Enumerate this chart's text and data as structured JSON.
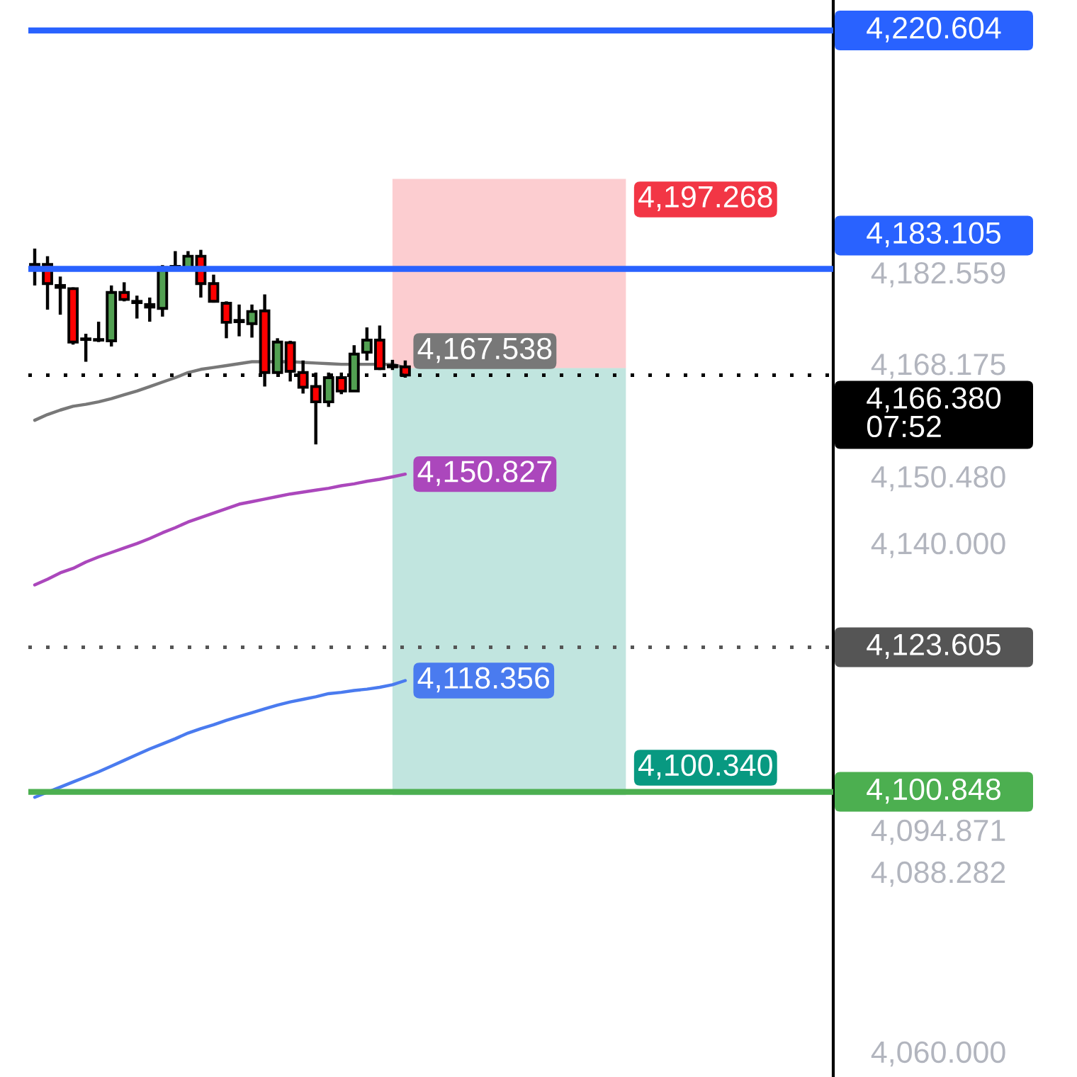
{
  "chart_data": {
    "type": "candlestick",
    "tick_labels": "y",
    "categories": [
      null,
      null,
      null,
      null,
      null,
      null,
      null,
      null,
      null,
      null,
      null,
      null,
      null,
      null,
      null,
      null,
      null,
      null,
      null,
      null,
      null,
      null,
      null,
      null,
      null,
      null,
      null,
      null,
      null,
      null,
      null,
      null,
      null,
      null,
      null,
      null,
      null,
      null,
      null,
      null,
      null,
      null,
      null,
      null,
      null,
      null,
      null,
      null,
      null,
      null,
      null,
      null,
      null,
      null,
      null,
      null,
      null,
      null,
      null,
      null,
      null,
      null,
      null
    ],
    "ohlc": [
      [
        4183.8,
        4186.3,
        4180.5,
        4183.3
      ],
      [
        4183.8,
        4185.1,
        4176.7,
        4180.8
      ],
      [
        4180.5,
        4181.9,
        4175.9,
        4180.2
      ],
      [
        4180.0,
        4180.2,
        4171.2,
        4171.6
      ],
      [
        4172.1,
        4172.9,
        4168.5,
        4172.0
      ],
      [
        4172.0,
        4174.8,
        4171.6,
        4171.9
      ],
      [
        4171.8,
        4180.5,
        4170.9,
        4179.4
      ],
      [
        4179.4,
        4181.0,
        4178.0,
        4178.3
      ],
      [
        4178.0,
        4178.9,
        4175.3,
        4177.8
      ],
      [
        4177.5,
        4178.6,
        4174.8,
        4177.1
      ],
      [
        4176.9,
        4183.7,
        4175.6,
        4183.3
      ],
      [
        4183.3,
        4185.9,
        4183.3,
        4183.5
      ],
      [
        4183.1,
        4185.9,
        4182.9,
        4185.1
      ],
      [
        4185.1,
        4186.1,
        4178.6,
        4180.8
      ],
      [
        4180.8,
        4182.2,
        4177.8,
        4178.0
      ],
      [
        4177.7,
        4178.0,
        4172.2,
        4174.7
      ],
      [
        4175.0,
        4177.5,
        4172.5,
        4174.8
      ],
      [
        4174.5,
        4177.5,
        4172.3,
        4176.4
      ],
      [
        4176.5,
        4179.1,
        4164.6,
        4166.8
      ],
      [
        4166.8,
        4172.2,
        4166.8,
        4171.6
      ],
      [
        4171.5,
        4171.8,
        4165.4,
        4167.0
      ],
      [
        4166.8,
        4168.7,
        4163.5,
        4164.5
      ],
      [
        4164.6,
        4166.8,
        4155.5,
        4162.2
      ],
      [
        4162.2,
        4166.8,
        4161.4,
        4166.0
      ],
      [
        4166.0,
        4166.8,
        4163.4,
        4163.9
      ],
      [
        4163.9,
        4171.1,
        4163.8,
        4169.7
      ],
      [
        4170.0,
        4173.9,
        4168.7,
        4171.9
      ],
      [
        4171.9,
        4174.2,
        4167.2,
        4167.4
      ],
      [
        4167.9,
        4168.8,
        4167.2,
        4167.7
      ],
      [
        4167.7,
        4168.7,
        4166.0,
        4166.4
      ],
      null,
      null,
      null,
      null,
      null,
      null,
      null,
      null,
      null,
      null,
      null,
      null,
      null,
      null,
      null,
      null,
      null,
      null,
      null,
      null,
      null,
      null,
      null,
      null,
      null,
      null,
      null,
      null,
      null,
      null,
      null,
      null,
      null
    ],
    "colors": [
      "#ff0000",
      "#ff0000",
      "#ff0000",
      "#ff0000",
      "#ff0000",
      "#ff0000",
      "#52a052",
      "#ff0000",
      "#ff0000",
      "#ff0000",
      "#52a052",
      "#52a052",
      "#52a052",
      "#ff0000",
      "#ff0000",
      "#ff0000",
      "#ff0000",
      "#52a052",
      "#ff0000",
      "#52a052",
      "#ff0000",
      "#ff0000",
      "#ff0000",
      "#52a052",
      "#ff0000",
      "#52a052",
      "#52a052",
      "#ff0000",
      "#ff0000",
      "#ff0000",
      null,
      null,
      null,
      null,
      null,
      null,
      null,
      null,
      null,
      null,
      null,
      null,
      null,
      null,
      null,
      null,
      null,
      null,
      null,
      null,
      null,
      null,
      null,
      null,
      null,
      null,
      null,
      null,
      null,
      null,
      null,
      null,
      null
    ],
    "series": [
      {
        "type": "line",
        "color": "#787878",
        "values": [
          4159.3,
          4160.2,
          4160.9,
          4161.5,
          4161.8,
          4162.2,
          4162.7,
          4163.3,
          4163.9,
          4164.6,
          4165.3,
          4166.0,
          4166.8,
          4167.3,
          4167.6,
          4167.9,
          4168.2,
          4168.5,
          4168.5,
          4168.5,
          4168.5,
          4168.4,
          4168.3,
          4168.2,
          4168.1,
          4168.1,
          4168.1,
          4168.1,
          4168.1,
          4167.538,
          null,
          null,
          null,
          null,
          null,
          null,
          null,
          null,
          null,
          null,
          null,
          null,
          null,
          null,
          null,
          null,
          null,
          null,
          null,
          null,
          null,
          null,
          null,
          null,
          null,
          null,
          null,
          null,
          null,
          null,
          null,
          null,
          null
        ],
        "value_labels": [
          null,
          null,
          null,
          null,
          null,
          null,
          null,
          null,
          null,
          null,
          null,
          null,
          null,
          null,
          null,
          null,
          null,
          null,
          null,
          null,
          null,
          null,
          null,
          null,
          null,
          null,
          null,
          null,
          null,
          "4,167.538",
          null,
          null,
          null,
          null,
          null,
          null,
          null,
          null,
          null,
          null,
          null,
          null,
          null,
          null,
          null,
          null,
          null,
          null,
          null,
          null,
          null,
          null,
          null,
          null,
          null,
          null,
          null,
          null,
          null,
          null,
          null,
          null,
          null
        ]
      },
      {
        "type": "line",
        "color": "#ab47bc",
        "values": [
          4133.4,
          4134.3,
          4135.3,
          4136.0,
          4137.0,
          4137.8,
          4138.5,
          4139.2,
          4139.9,
          4140.7,
          4141.6,
          4142.4,
          4143.3,
          4144.0,
          4144.7,
          4145.4,
          4146.1,
          4146.5,
          4146.9,
          4147.3,
          4147.7,
          4148.0,
          4148.3,
          4148.6,
          4149.0,
          4149.3,
          4149.7,
          4150.0,
          4150.4,
          4150.827,
          null,
          null,
          null,
          null,
          null,
          null,
          null,
          null,
          null,
          null,
          null,
          null,
          null,
          null,
          null,
          null,
          null,
          null,
          null,
          null,
          null,
          null,
          null,
          null,
          null,
          null,
          null,
          null,
          null,
          null,
          null,
          null,
          null
        ],
        "value_labels": [
          null,
          null,
          null,
          null,
          null,
          null,
          null,
          null,
          null,
          null,
          null,
          null,
          null,
          null,
          null,
          null,
          null,
          null,
          null,
          null,
          null,
          null,
          null,
          null,
          null,
          null,
          null,
          null,
          null,
          "4,150.827",
          null,
          null,
          null,
          null,
          null,
          null,
          null,
          null,
          null,
          null,
          null,
          null,
          null,
          null,
          null,
          null,
          null,
          null,
          null,
          null,
          null,
          null,
          null,
          null,
          null,
          null,
          null,
          null,
          null,
          null,
          null,
          null,
          null
        ]
      },
      {
        "type": "line",
        "color": "#4a7bef",
        "values": [
          4100.0,
          4100.8,
          4101.6,
          4102.4,
          4103.2,
          4104.0,
          4104.9,
          4105.8,
          4106.7,
          4107.6,
          4108.4,
          4109.2,
          4110.1,
          4110.8,
          4111.4,
          4112.1,
          4112.7,
          4113.3,
          4113.9,
          4114.5,
          4115.0,
          4115.4,
          4115.8,
          4116.3,
          4116.5,
          4116.8,
          4117.0,
          4117.3,
          4117.7,
          4118.356,
          null,
          null,
          null,
          null,
          null,
          null,
          null,
          null,
          null,
          null,
          null,
          null,
          null,
          null,
          null,
          null,
          null,
          null,
          null,
          null,
          null,
          null,
          null,
          null,
          null,
          null,
          null,
          null,
          null,
          null,
          null,
          null,
          null
        ],
        "value_labels": [
          null,
          null,
          null,
          null,
          null,
          null,
          null,
          null,
          null,
          null,
          null,
          null,
          null,
          null,
          null,
          null,
          null,
          null,
          null,
          null,
          null,
          null,
          null,
          null,
          null,
          null,
          null,
          null,
          null,
          "4,118.356",
          null,
          null,
          null,
          null,
          null,
          null,
          null,
          null,
          null,
          null,
          null,
          null,
          null,
          null,
          null,
          null,
          null,
          null,
          null,
          null,
          null,
          null,
          null,
          null,
          null,
          null,
          null,
          null,
          null,
          null,
          null,
          null,
          null
        ]
      }
    ],
    "ylim": [
      4056,
      4225.4
    ],
    "yticks": [
      {
        "value": 4182.559,
        "label": "4,182.559"
      },
      {
        "value": 4168.175,
        "label": "4,168.175"
      },
      {
        "value": 4150.48,
        "label": "4,150.480"
      },
      {
        "value": 4140,
        "label": "4,140.000"
      },
      {
        "value": 4094.871,
        "label": "4,094.871"
      },
      {
        "value": 4088.282,
        "label": "4,088.282"
      },
      {
        "value": 4060,
        "label": "4,060.000"
      }
    ],
    "ref_lines": [
      {
        "axis": "y",
        "value": 4220.604,
        "label": "4,220.604",
        "color": "#2962ff",
        "line_style": "solid"
      },
      {
        "axis": "y",
        "value": 4183.105,
        "label": "4,183.105",
        "color": "#2962ff",
        "line_style": "solid"
      },
      {
        "axis": "y",
        "value": 4166.38,
        "label": "4,166.380\n07:52",
        "color": "#000000",
        "line_style": "dotted"
      },
      {
        "axis": "y",
        "value": 4123.605,
        "label": "4,123.605",
        "color": "#555555",
        "line_style": "dotted"
      },
      {
        "axis": "y",
        "value": 4100.848,
        "label": "4,100.848",
        "color": "#4caf50",
        "line_style": "solid"
      }
    ],
    "bands": [
      {
        "axis": "y",
        "from": 4167.5,
        "to": 4197.268,
        "label": "4,197.268",
        "color": "#f23645"
      },
      {
        "axis": "y",
        "from": 4167.5,
        "to": 4100.34,
        "label": "4,100.340",
        "color": "#089981"
      }
    ]
  }
}
